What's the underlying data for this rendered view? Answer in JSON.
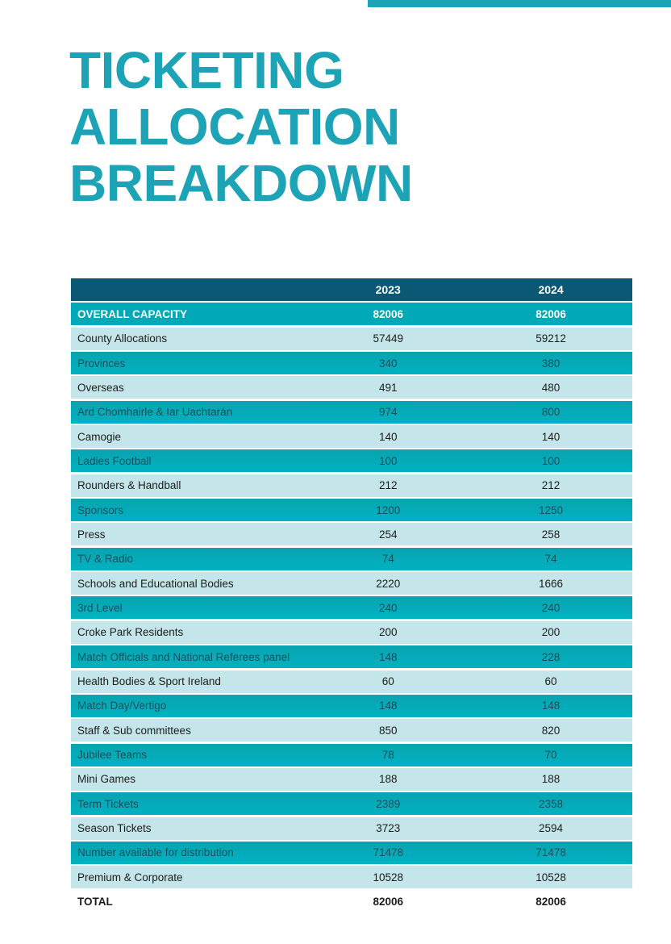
{
  "page": {
    "title_lines": [
      "TICKETING",
      "ALLOCATION",
      "BREAKDOWN"
    ]
  },
  "colors": {
    "accent_teal": "#1ca4b6",
    "header_row_bg": "#0b5875",
    "capacity_row_bg": "#00a9b7",
    "teal_row_bg": "#00aebc",
    "light_row_bg": "#c4e6ea",
    "teal_row_text": "#17505c",
    "dark_text": "#1d1d1b",
    "header_text": "#ffffff"
  },
  "table": {
    "year_columns": [
      "2023",
      "2024"
    ],
    "rows": [
      {
        "label": "OVERALL CAPACITY",
        "v2023": "82006",
        "v2024": "82006",
        "style": "capacity"
      },
      {
        "label": "County Allocations",
        "v2023": "57449",
        "v2024": "59212",
        "style": "light"
      },
      {
        "label": "Provinces",
        "v2023": "340",
        "v2024": "380",
        "style": "teal"
      },
      {
        "label": "Overseas",
        "v2023": "491",
        "v2024": "480",
        "style": "light"
      },
      {
        "label": "Ard Chomhairle & Iar Uachtarán",
        "v2023": "974",
        "v2024": "800",
        "style": "teal"
      },
      {
        "label": "Camogie",
        "v2023": "140",
        "v2024": "140",
        "style": "light"
      },
      {
        "label": "Ladies Football",
        "v2023": "100",
        "v2024": "100",
        "style": "teal"
      },
      {
        "label": "Rounders & Handball",
        "v2023": "212",
        "v2024": "212",
        "style": "light"
      },
      {
        "label": "Sponsors",
        "v2023": "1200",
        "v2024": "1250",
        "style": "teal"
      },
      {
        "label": "Press",
        "v2023": "254",
        "v2024": "258",
        "style": "light"
      },
      {
        "label": "TV & Radio",
        "v2023": "74",
        "v2024": "74",
        "style": "teal"
      },
      {
        "label": "Schools and Educational Bodies",
        "v2023": "2220",
        "v2024": "1666",
        "style": "light"
      },
      {
        "label": "3rd Level",
        "v2023": "240",
        "v2024": "240",
        "style": "teal"
      },
      {
        "label": "Croke Park Residents",
        "v2023": "200",
        "v2024": "200",
        "style": "light"
      },
      {
        "label": "Match Officials and National Referees panel",
        "v2023": "148",
        "v2024": "228",
        "style": "teal"
      },
      {
        "label": "Health Bodies & Sport Ireland",
        "v2023": "60",
        "v2024": "60",
        "style": "light"
      },
      {
        "label": "Match Day/Vertigo",
        "v2023": "148",
        "v2024": "148",
        "style": "teal"
      },
      {
        "label": "Staff & Sub committees",
        "v2023": "850",
        "v2024": "820",
        "style": "light"
      },
      {
        "label": "Jubilee Teams",
        "v2023": "78",
        "v2024": "70",
        "style": "teal"
      },
      {
        "label": "Mini Games",
        "v2023": "188",
        "v2024": "188",
        "style": "light"
      },
      {
        "label": "Term Tickets",
        "v2023": "2389",
        "v2024": "2358",
        "style": "teal"
      },
      {
        "label": "Season Tickets",
        "v2023": "3723",
        "v2024": "2594",
        "style": "light"
      },
      {
        "label": "Number available for distribution",
        "v2023": "71478",
        "v2024": "71478",
        "style": "teal"
      },
      {
        "label": "Premium & Corporate",
        "v2023": "10528",
        "v2024": "10528",
        "style": "light"
      },
      {
        "label": "TOTAL",
        "v2023": "82006",
        "v2024": "82006",
        "style": "total"
      }
    ]
  }
}
